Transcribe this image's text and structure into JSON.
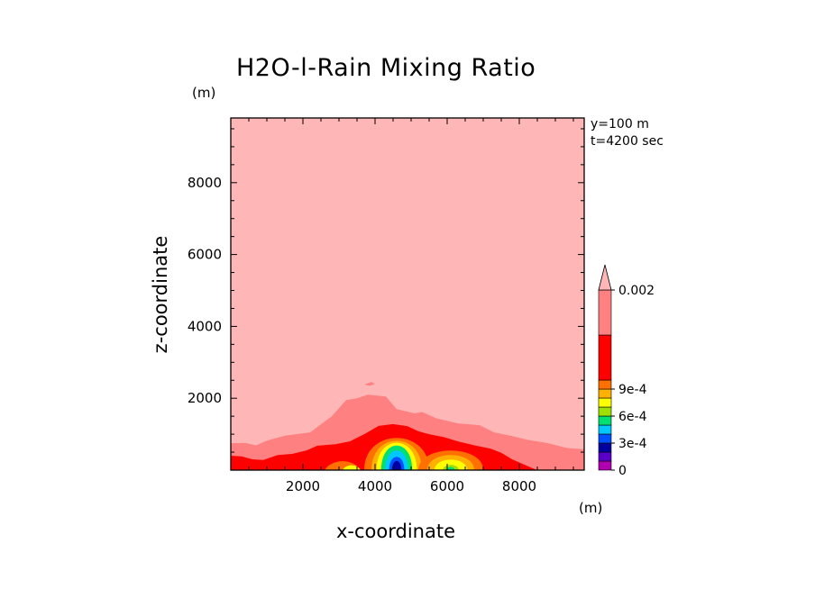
{
  "chart_data": {
    "type": "heatmap",
    "title": "H2O-l-Rain Mixing Ratio",
    "xlabel": "x-coordinate",
    "ylabel": "z-coordinate",
    "x_unit": "(m)",
    "y_unit": "(m)",
    "xlim": [
      0,
      9800
    ],
    "ylim": [
      0,
      9800
    ],
    "x_ticks": [
      2000,
      4000,
      6000,
      8000
    ],
    "y_ticks": [
      2000,
      4000,
      6000,
      8000
    ],
    "annotations": [
      "y=100 m",
      "t=4200 sec"
    ],
    "colorbar": {
      "levels": [
        0,
        0.0001,
        0.0002,
        0.0003,
        0.0004,
        0.0005,
        0.0006,
        0.0007,
        0.0008,
        0.0009,
        0.001,
        0.002
      ],
      "colors": [
        "#b000b0",
        "#5a00c8",
        "#0000a0",
        "#0050ff",
        "#00c8ff",
        "#00e070",
        "#a0e000",
        "#ffff00",
        "#ffb000",
        "#ff7000",
        "#ff0000",
        "#ff8080",
        "#ffb6b6"
      ],
      "tick_labels": [
        {
          "value": 0,
          "label": "0"
        },
        {
          "value": 0.0003,
          "label": "3e-4"
        },
        {
          "value": 0.0006,
          "label": "6e-4"
        },
        {
          "value": 0.0009,
          "label": "9e-4"
        },
        {
          "value": 0.002,
          "label": "0.002"
        }
      ],
      "extend": "max"
    },
    "fields": {
      "background": "#ffb6b6",
      "light_red_band": "#ff8080",
      "red_band": "#ff0000",
      "core_x_center": 4600,
      "secondary_core_x_center": 6100
    }
  }
}
